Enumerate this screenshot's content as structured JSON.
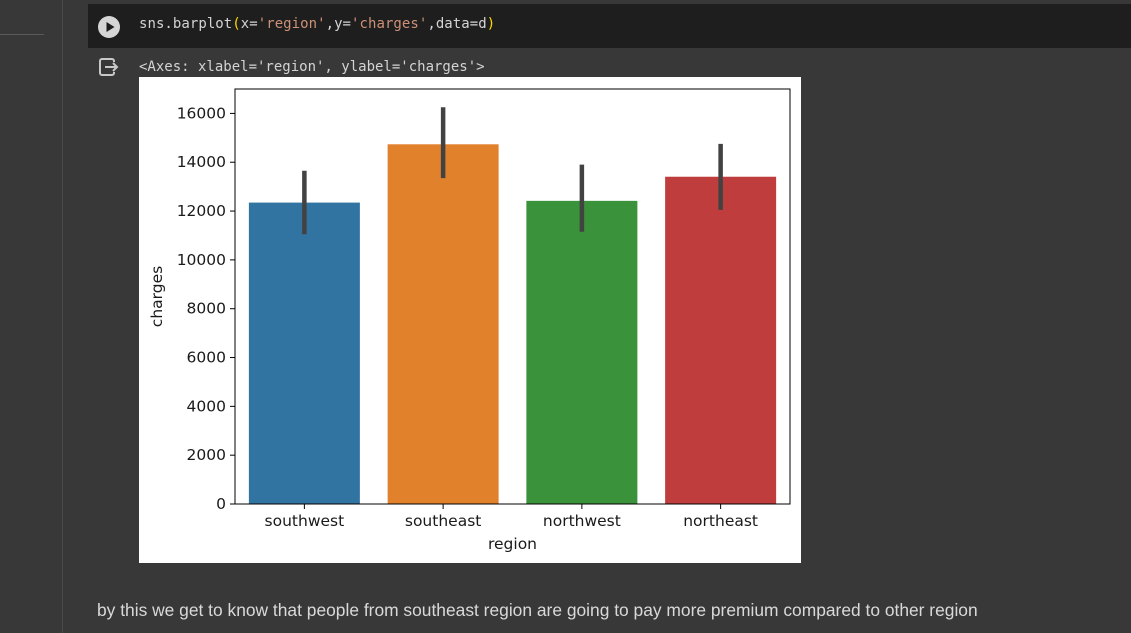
{
  "code_cell": {
    "func": "sns.barplot",
    "open_paren": "(",
    "arg_x": "x=",
    "val_x": "'region'",
    "sep1": ",",
    "arg_y": "y=",
    "val_y": "'charges'",
    "sep2": ",data=d",
    "close_paren": ")"
  },
  "output": {
    "repr": "<Axes: xlabel='region', ylabel='charges'>"
  },
  "chart_data": {
    "type": "bar",
    "categories": [
      "southwest",
      "southeast",
      "northwest",
      "northeast"
    ],
    "values": [
      12347,
      14735,
      12418,
      13406
    ],
    "error_bars": [
      [
        11050,
        13650
      ],
      [
        13350,
        16250
      ],
      [
        11150,
        13900
      ],
      [
        12050,
        14750
      ]
    ],
    "colors": [
      "#3274a1",
      "#e1812c",
      "#3a923a",
      "#c03d3e"
    ],
    "xlabel": "region",
    "ylabel": "charges",
    "ylim": [
      0,
      17000
    ],
    "yticks": [
      0,
      2000,
      4000,
      6000,
      8000,
      10000,
      12000,
      14000,
      16000
    ],
    "ytick_labels": [
      "0",
      "2000",
      "4000",
      "6000",
      "8000",
      "10000",
      "12000",
      "14000",
      "16000"
    ],
    "grid": false
  },
  "markdown": {
    "text": "by this we get to know that people from southeast region are going to pay more premium compared to other region"
  }
}
